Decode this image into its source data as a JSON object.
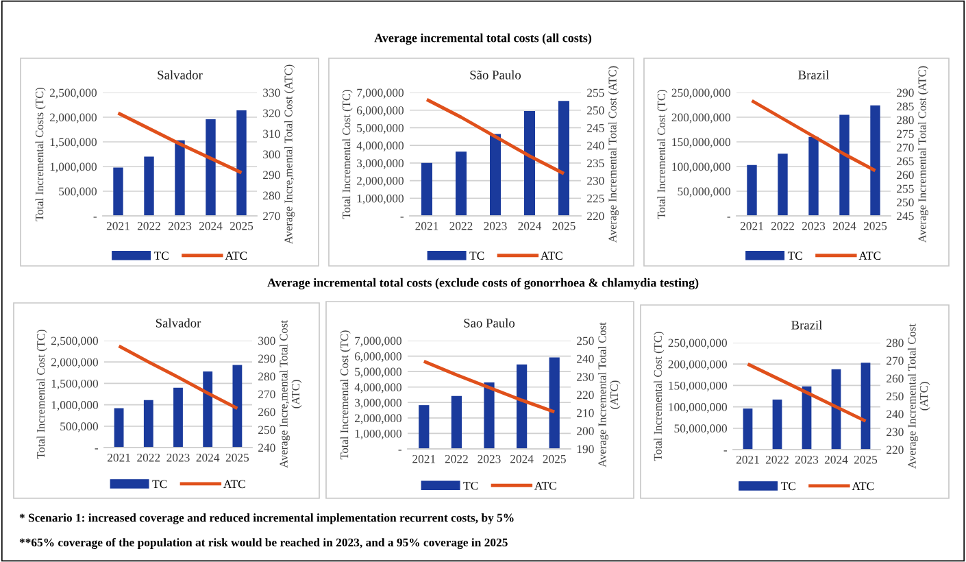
{
  "chart_data": [
    {
      "type": "bar",
      "title": "Salvador",
      "ylabel": "Total Incremental Costs (TC)",
      "y2label": "Average Incre,mental Total Cost (ATC)",
      "categories": [
        "2021",
        "2022",
        "2023",
        "2024",
        "2025"
      ],
      "series": [
        {
          "name": "TC",
          "color": "#1a3a9c",
          "values": [
            980000,
            1200000,
            1530000,
            1960000,
            2140000
          ]
        },
        {
          "name": "ATC",
          "type": "line",
          "axis": "y2",
          "color": "#e0501b",
          "values": [
            320,
            312.5,
            305,
            298,
            291
          ]
        }
      ],
      "ylim": [
        0,
        2500000
      ],
      "yticks": [
        {
          "value": 0,
          "label": "-"
        },
        {
          "value": 500000,
          "label": "500,000"
        },
        {
          "value": 1000000,
          "label": "1,000,000"
        },
        {
          "value": 1500000,
          "label": "1,500,000"
        },
        {
          "value": 2000000,
          "label": "2,000,000"
        },
        {
          "value": 2500000,
          "label": "2,500,000"
        }
      ],
      "y2lim": [
        270,
        330
      ],
      "y2ticks": [
        270,
        280,
        290,
        300,
        310,
        320,
        330
      ],
      "grid": "y",
      "legend": "bottom",
      "line_style": "solid",
      "marker": "none",
      "annotations": [
        "Average incremental total costs (all costs)"
      ]
    },
    {
      "type": "bar",
      "title": "São Paulo",
      "ylabel": "Total Incremental Cost (TC)",
      "y2label": "Average Incremental Total Cost (ATC)",
      "categories": [
        "2021",
        "2022",
        "2023",
        "2024",
        "2025"
      ],
      "series": [
        {
          "name": "TC",
          "color": "#1a3a9c",
          "values": [
            3000000,
            3650000,
            4650000,
            5950000,
            6520000
          ]
        },
        {
          "name": "ATC",
          "type": "line",
          "axis": "y2",
          "color": "#e0501b",
          "values": [
            253,
            248,
            242.5,
            237,
            232
          ]
        }
      ],
      "ylim": [
        0,
        7000000
      ],
      "yticks": [
        {
          "value": 0,
          "label": "-"
        },
        {
          "value": 1000000,
          "label": "1,000,000"
        },
        {
          "value": 2000000,
          "label": "2,000,000"
        },
        {
          "value": 3000000,
          "label": "3,000,000"
        },
        {
          "value": 4000000,
          "label": "4,000,000"
        },
        {
          "value": 5000000,
          "label": "5,000,000"
        },
        {
          "value": 6000000,
          "label": "6,000,000"
        },
        {
          "value": 7000000,
          "label": "7,000,000"
        }
      ],
      "y2lim": [
        220,
        255
      ],
      "y2ticks": [
        220,
        225,
        230,
        235,
        240,
        245,
        250,
        255
      ],
      "grid": "y",
      "legend": "bottom",
      "line_style": "solid",
      "marker": "none"
    },
    {
      "type": "bar",
      "title": "Brazil",
      "ylabel": "Total Incremental Cost (TC)",
      "y2label": "Average Incremental Total Cost (ATC)",
      "categories": [
        "2021",
        "2022",
        "2023",
        "2024",
        "2025"
      ],
      "series": [
        {
          "name": "TC",
          "color": "#1a3a9c",
          "values": [
            103000000,
            126000000,
            160000000,
            205000000,
            224000000
          ]
        },
        {
          "name": "ATC",
          "type": "line",
          "axis": "y2",
          "color": "#e0501b",
          "values": [
            287,
            280.5,
            274,
            267.5,
            261.5
          ]
        }
      ],
      "ylim": [
        0,
        250000000
      ],
      "yticks": [
        {
          "value": 0,
          "label": "-"
        },
        {
          "value": 50000000,
          "label": "50,000,000"
        },
        {
          "value": 100000000,
          "label": "100,000,000"
        },
        {
          "value": 150000000,
          "label": "150,000,000"
        },
        {
          "value": 200000000,
          "label": "200,000,000"
        },
        {
          "value": 250000000,
          "label": "250,000,000"
        }
      ],
      "y2lim": [
        245,
        290
      ],
      "y2ticks": [
        245,
        250,
        255,
        260,
        265,
        270,
        275,
        280,
        285,
        290
      ],
      "grid": "y",
      "legend": "bottom",
      "line_style": "solid",
      "marker": "none"
    },
    {
      "type": "bar",
      "title": "Salvador",
      "ylabel": "Total Incremental Cost (TC)",
      "y2label": "Average Incre,mental Total Cost\n(ATC)",
      "categories": [
        "2021",
        "2022",
        "2023",
        "2024",
        "2025"
      ],
      "series": [
        {
          "name": "TC",
          "color": "#1a3a9c",
          "values": [
            920000,
            1110000,
            1400000,
            1780000,
            1930000
          ]
        },
        {
          "name": "ATC",
          "type": "line",
          "axis": "y2",
          "color": "#e0501b",
          "values": [
            297,
            288,
            279.5,
            270.5,
            262
          ]
        }
      ],
      "ylim": [
        0,
        2500000
      ],
      "yticks": [
        {
          "value": 0,
          "label": "-"
        },
        {
          "value": 500000,
          "label": "500,000"
        },
        {
          "value": 1000000,
          "label": "1,000,000"
        },
        {
          "value": 1500000,
          "label": "1,500,000"
        },
        {
          "value": 2000000,
          "label": "2,000,000"
        },
        {
          "value": 2500000,
          "label": "2,500,000"
        }
      ],
      "y2lim": [
        240,
        300
      ],
      "y2ticks": [
        240,
        250,
        260,
        270,
        280,
        290,
        300
      ],
      "grid": "y",
      "legend": "bottom",
      "line_style": "solid",
      "marker": "none",
      "annotations": [
        "Average incremental total costs (exclude costs of gonorrhoea & chlamydia testing)"
      ]
    },
    {
      "type": "bar",
      "title": "Sao Paulo",
      "ylabel": "Total Incremental Cost (TC)",
      "y2label": "Average Incremental Total Cost\n(ATC)",
      "categories": [
        "2021",
        "2022",
        "2023",
        "2024",
        "2025"
      ],
      "series": [
        {
          "name": "TC",
          "color": "#1a3a9c",
          "values": [
            2830000,
            3420000,
            4300000,
            5460000,
            5920000
          ]
        },
        {
          "name": "ATC",
          "type": "line",
          "axis": "y2",
          "color": "#e0501b",
          "values": [
            238.5,
            231,
            224,
            217,
            210.5
          ]
        }
      ],
      "ylim": [
        0,
        7000000
      ],
      "yticks": [
        {
          "value": 0,
          "label": "-"
        },
        {
          "value": 1000000,
          "label": "1,000,000"
        },
        {
          "value": 2000000,
          "label": "2,000,000"
        },
        {
          "value": 3000000,
          "label": "3,000,000"
        },
        {
          "value": 4000000,
          "label": "4,000,000"
        },
        {
          "value": 5000000,
          "label": "5,000,000"
        },
        {
          "value": 6000000,
          "label": "6,000,000"
        },
        {
          "value": 7000000,
          "label": "7,000,000"
        }
      ],
      "y2lim": [
        190,
        250
      ],
      "y2ticks": [
        190,
        200,
        210,
        220,
        230,
        240,
        250
      ],
      "grid": "y",
      "legend": "bottom",
      "line_style": "solid",
      "marker": "none"
    },
    {
      "type": "bar",
      "title": "Brazil",
      "ylabel": "Total Incremental Cost (TC)",
      "y2label": "Average Incremental Total Cost\n(ATC)",
      "categories": [
        "2021",
        "2022",
        "2023",
        "2024",
        "2025"
      ],
      "series": [
        {
          "name": "TC",
          "color": "#1a3a9c",
          "values": [
            96000000,
            117000000,
            148000000,
            188000000,
            203000000
          ]
        },
        {
          "name": "ATC",
          "type": "line",
          "axis": "y2",
          "color": "#e0501b",
          "values": [
            268,
            260,
            252,
            244,
            236
          ]
        }
      ],
      "ylim": [
        0,
        250000000
      ],
      "yticks": [
        {
          "value": 0,
          "label": "-"
        },
        {
          "value": 50000000,
          "label": "50,000,000"
        },
        {
          "value": 100000000,
          "label": "100,000,000"
        },
        {
          "value": 150000000,
          "label": "150,000,000"
        },
        {
          "value": 200000000,
          "label": "200,000,000"
        },
        {
          "value": 250000000,
          "label": "250,000,000"
        }
      ],
      "y2lim": [
        220,
        280
      ],
      "y2ticks": [
        220,
        230,
        240,
        250,
        260,
        270,
        280
      ],
      "grid": "y",
      "legend": "bottom",
      "line_style": "solid",
      "marker": "none",
      "annotations": [
        "* Scenario 1: increased coverage and reduced incremental implementation recurrent costs, by 5%",
        "**65% coverage of the population at risk would be reached in 2023, and a 95% coverage in 2025"
      ]
    }
  ]
}
